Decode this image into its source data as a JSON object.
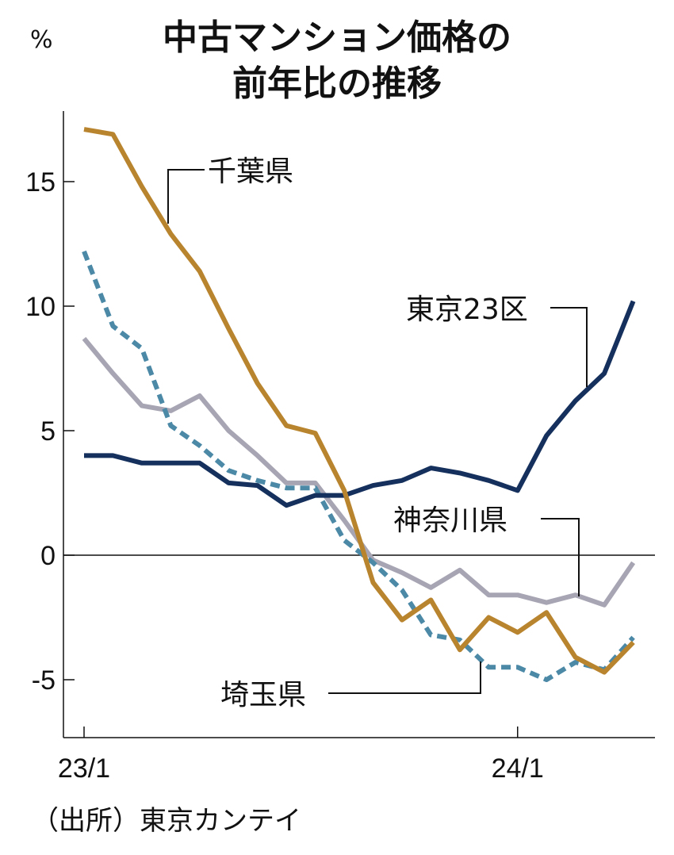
{
  "chart_data": {
    "type": "line",
    "title": [
      "中古マンション価格の",
      "前年比の推移"
    ],
    "ylabel": "%",
    "ylim": [
      -7.3,
      18.5
    ],
    "yticks": [
      15,
      10,
      5,
      0,
      -5
    ],
    "ytick_labels": [
      "15",
      "10",
      "5",
      "0",
      "-5"
    ],
    "x_range": [
      0,
      24.2
    ],
    "xticks": [
      {
        "x": 0,
        "label": "23/1"
      },
      {
        "x": 15,
        "label": "24/1"
      }
    ],
    "series": [
      {
        "name": "千葉県",
        "color": "#b9842e",
        "dashed": false,
        "values": [
          17.1,
          16.9,
          14.8,
          12.9,
          11.4,
          9.1,
          6.9,
          5.2,
          4.9,
          2.6,
          -1.1,
          -2.6,
          -1.8,
          -3.8,
          -2.5,
          -3.1,
          -2.3,
          -4.1,
          -4.7,
          -3.5
        ]
      },
      {
        "name": "東京23区",
        "color": "#15305c",
        "dashed": false,
        "values": [
          4.0,
          4.0,
          3.7,
          3.7,
          3.7,
          2.9,
          2.8,
          2.0,
          2.4,
          2.4,
          2.8,
          3.0,
          3.5,
          3.3,
          3.0,
          2.6,
          4.8,
          6.2,
          7.3,
          10.2
        ]
      },
      {
        "name": "神奈川県",
        "color": "#a7a5b3",
        "dashed": false,
        "values": [
          8.7,
          7.3,
          6.0,
          5.8,
          6.4,
          5.0,
          4.0,
          2.9,
          2.9,
          1.4,
          -0.2,
          -0.7,
          -1.3,
          -0.6,
          -1.6,
          -1.6,
          -1.9,
          -1.6,
          -2.0,
          -0.3
        ]
      },
      {
        "name": "埼玉県",
        "color": "#4b89a7",
        "dashed": true,
        "values": [
          12.2,
          9.2,
          8.3,
          5.2,
          4.4,
          3.4,
          3.0,
          2.7,
          2.7,
          0.6,
          -0.3,
          -1.4,
          -3.2,
          -3.4,
          -4.5,
          -4.5,
          -5.0,
          -4.3,
          -4.6,
          -3.3
        ]
      }
    ],
    "annotations": [
      {
        "series": "千葉県",
        "text": "千葉県"
      },
      {
        "series": "東京23区",
        "text": "東京23区"
      },
      {
        "series": "神奈川県",
        "text": "神奈川県"
      },
      {
        "series": "埼玉県",
        "text": "埼玉県"
      }
    ],
    "source": "（出所）東京カンテイ"
  }
}
